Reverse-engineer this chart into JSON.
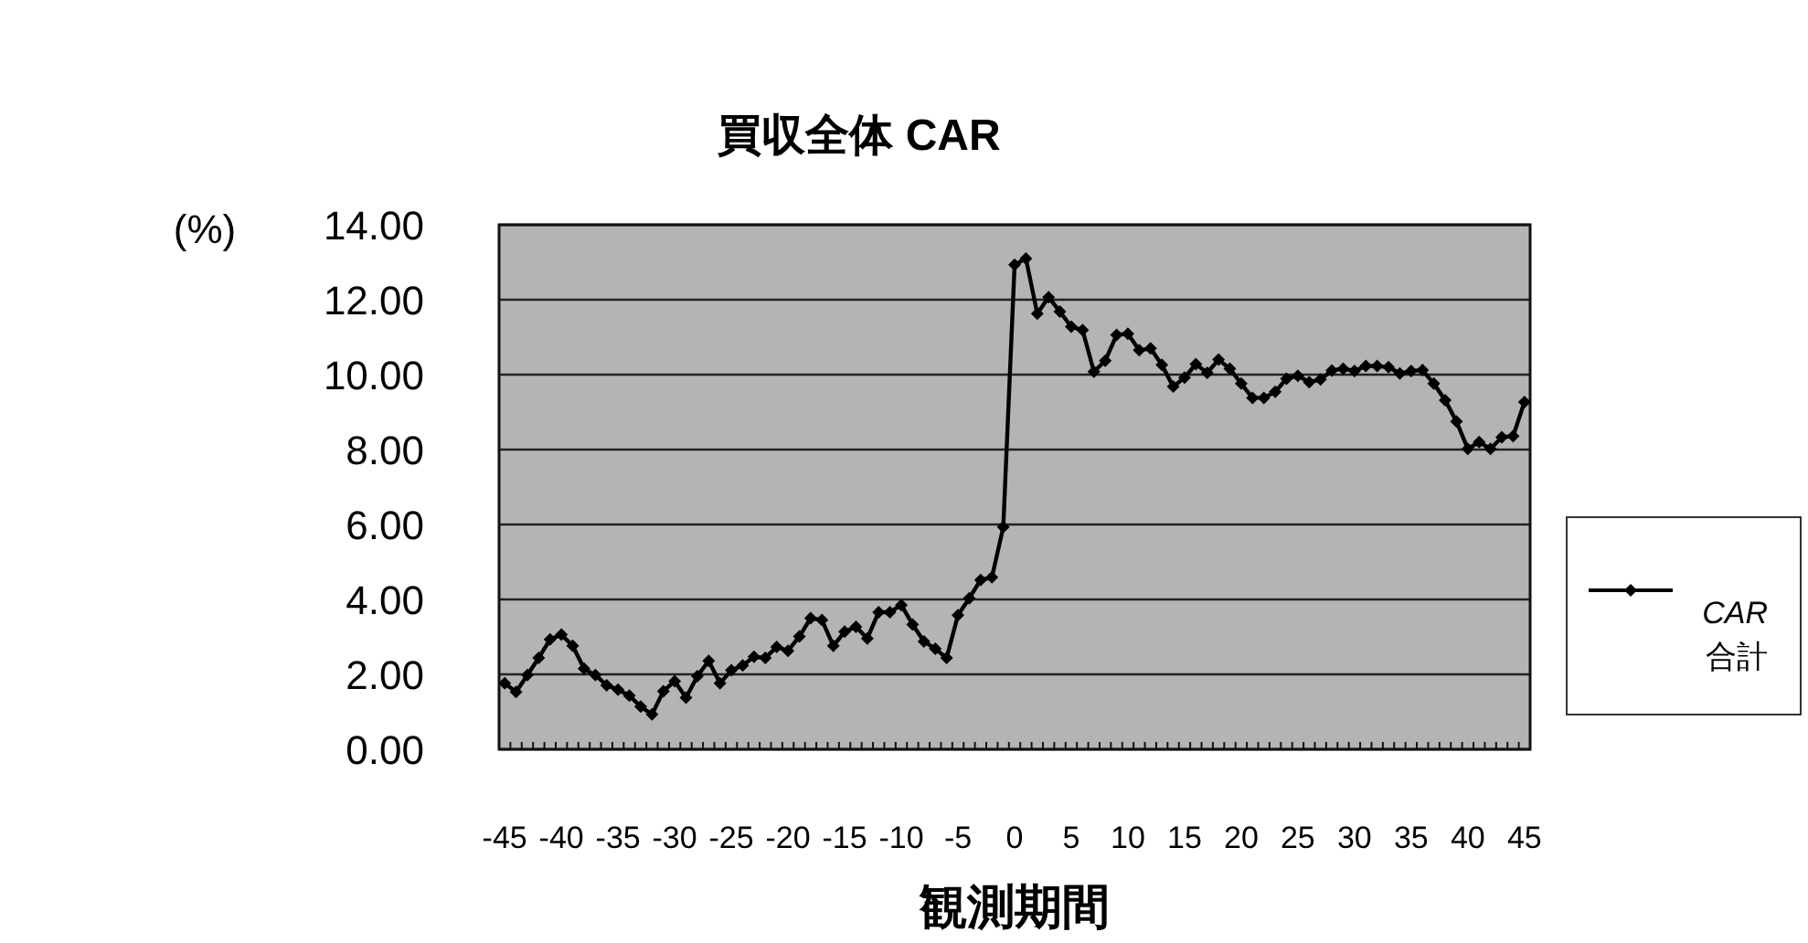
{
  "chart_data": {
    "type": "line",
    "title": "買収全体 CAR",
    "xlabel": "観測期間",
    "ylabel": "(%)",
    "categories": [
      "-45",
      null,
      null,
      null,
      null,
      "-40",
      null,
      null,
      null,
      null,
      "-35",
      null,
      null,
      null,
      null,
      "-30",
      null,
      null,
      null,
      null,
      "-25",
      null,
      null,
      null,
      null,
      "-20",
      null,
      null,
      null,
      null,
      "-15",
      null,
      null,
      null,
      null,
      "-10",
      null,
      null,
      null,
      null,
      "-5",
      null,
      null,
      null,
      null,
      "0",
      null,
      null,
      null,
      null,
      "5",
      null,
      null,
      null,
      null,
      "10",
      null,
      null,
      null,
      null,
      "15",
      null,
      null,
      null,
      null,
      "20",
      null,
      null,
      null,
      null,
      "25",
      null,
      null,
      null,
      null,
      "30",
      null,
      null,
      null,
      null,
      "35",
      null,
      null,
      null,
      null,
      "40",
      null,
      null,
      null,
      null,
      "45"
    ],
    "series": [
      {
        "name": "CAR 合計",
        "color": "#000000",
        "values": [
          1.76,
          1.53,
          1.98,
          2.44,
          2.93,
          3.06,
          2.76,
          2.15,
          1.98,
          1.71,
          1.59,
          1.43,
          1.14,
          0.93,
          1.55,
          1.82,
          1.38,
          1.95,
          2.36,
          1.76,
          2.11,
          2.24,
          2.47,
          2.44,
          2.73,
          2.63,
          3.01,
          3.5,
          3.45,
          2.76,
          3.14,
          3.27,
          2.96,
          3.66,
          3.66,
          3.85,
          3.33,
          2.88,
          2.68,
          2.44,
          3.58,
          4.03,
          4.52,
          4.59,
          5.93,
          12.93,
          13.1,
          11.63,
          12.07,
          11.68,
          11.28,
          11.19,
          10.08,
          10.37,
          11.06,
          11.09,
          10.65,
          10.7,
          10.26,
          9.68,
          9.92,
          10.28,
          10.05,
          10.4,
          10.16,
          9.76,
          9.38,
          9.38,
          9.54,
          9.89,
          9.97,
          9.8,
          9.87,
          10.11,
          10.16,
          10.1,
          10.23,
          10.23,
          10.2,
          10.03,
          10.1,
          10.12,
          9.76,
          9.32,
          8.75,
          8.02,
          8.2,
          8.02,
          8.33,
          8.36,
          9.27
        ]
      }
    ],
    "ylim": [
      0,
      14
    ],
    "yticks": [
      {
        "value": 0,
        "label": "0.00"
      },
      {
        "value": 2,
        "label": "2.00"
      },
      {
        "value": 4,
        "label": "4.00"
      },
      {
        "value": 6,
        "label": "6.00"
      },
      {
        "value": 8,
        "label": "8.00"
      },
      {
        "value": 10,
        "label": "10.00"
      },
      {
        "value": 12,
        "label": "12.00"
      },
      {
        "value": 14,
        "label": "14.00"
      }
    ],
    "grid": "y",
    "legend": "right",
    "marker": "diamond",
    "line_style": "solid"
  }
}
